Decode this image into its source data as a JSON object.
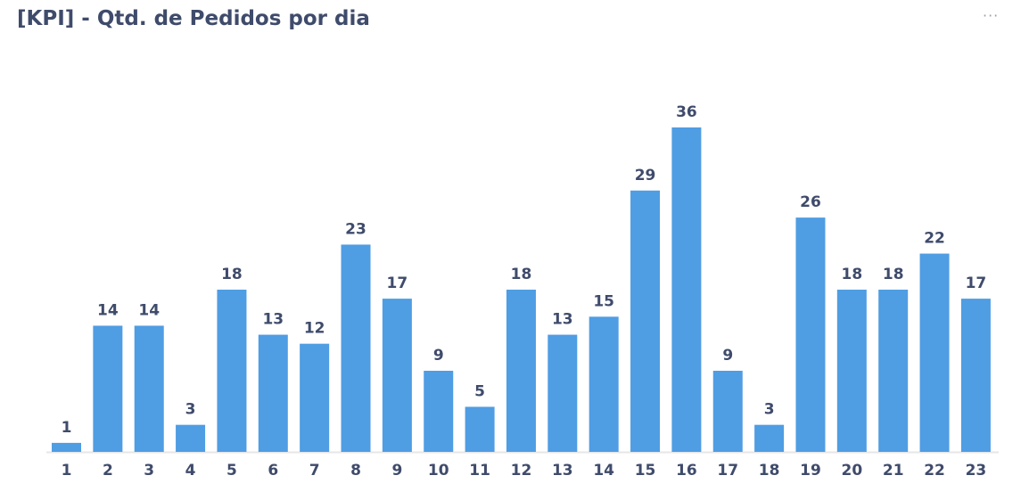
{
  "header": {
    "title": "[KPI] - Qtd. de Pedidos por dia",
    "more_icon": "···"
  },
  "chart_data": {
    "type": "bar",
    "title": "[KPI] - Qtd. de Pedidos por dia",
    "xlabel": "",
    "ylabel": "",
    "categories": [
      "1",
      "2",
      "3",
      "4",
      "5",
      "6",
      "7",
      "8",
      "9",
      "10",
      "11",
      "12",
      "13",
      "14",
      "15",
      "16",
      "17",
      "18",
      "19",
      "20",
      "21",
      "22",
      "23"
    ],
    "values": [
      1,
      14,
      14,
      3,
      18,
      13,
      12,
      23,
      17,
      9,
      5,
      18,
      13,
      15,
      29,
      36,
      9,
      3,
      26,
      18,
      18,
      22,
      17
    ],
    "ylim": [
      0,
      36
    ],
    "grid": false,
    "bar_color": "#4f9de3",
    "data_labels": true
  }
}
